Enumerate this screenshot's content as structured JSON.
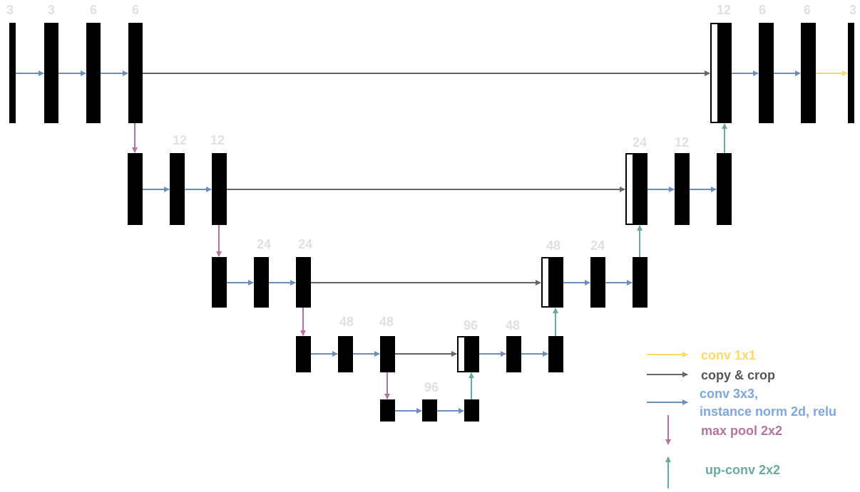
{
  "colors": {
    "feature_map": "#000000",
    "concat_border": "#000000",
    "channel_label": "#e0e0e0",
    "conv1x1": "#ffd966",
    "copy_crop": "#666666",
    "conv3x3": "#6c8ebf",
    "maxpool": "#b5739d",
    "upconv": "#67ab9f",
    "legend_conv1x1_text": "#ffd966",
    "legend_copy_text": "#555555",
    "legend_conv3x3_text": "#7ea6e0",
    "legend_maxpool_text": "#b5739d",
    "legend_upconv_text": "#67ab9f"
  },
  "labels": {
    "l1_in": "3",
    "l1_a": "3",
    "l1_b": "6",
    "l1_c": "6",
    "r1_cat": "12",
    "r1_a": "6",
    "r1_b": "6",
    "r1_out": "3",
    "l2_a": "12",
    "l2_b": "12",
    "r2_cat": "24",
    "r2_a": "12",
    "l3_a": "24",
    "l3_b": "24",
    "r3_cat": "48",
    "r3_a": "24",
    "l4_a": "48",
    "l4_b": "48",
    "r4_cat": "96",
    "r4_a": "48",
    "bottom": "96"
  },
  "legend": {
    "conv1x1": "conv 1x1",
    "copy_crop": "copy & crop",
    "conv3x3_line1": "conv 3x3,",
    "conv3x3_line2": "instance norm 2d, relu",
    "maxpool": "max pool 2x2",
    "upconv": "up-conv 2x2"
  }
}
